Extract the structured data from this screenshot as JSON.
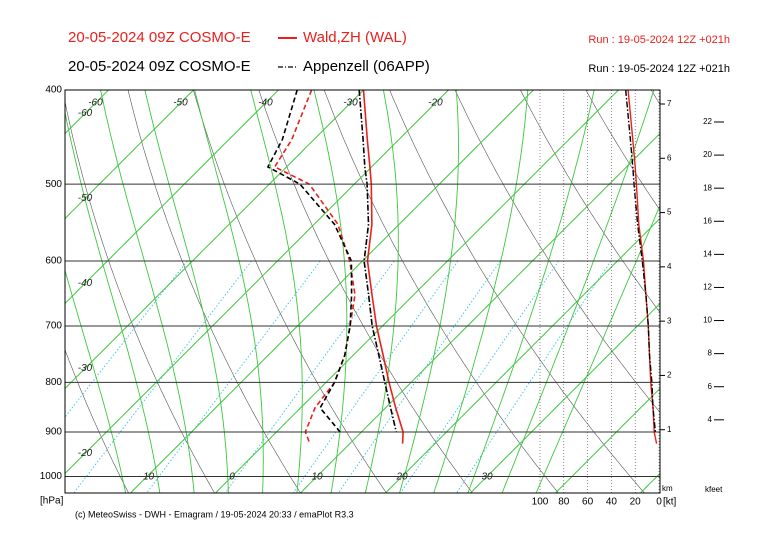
{
  "chart_data": {
    "type": "emagram",
    "stations": [
      {
        "label": "20-05-2024 09Z COSMO-E",
        "name": "Wald,ZH (WAL)",
        "run": "Run : 19-05-2024 12Z +021h",
        "color": "#e8211d",
        "dash": "solid",
        "temperature": [
          -30,
          -23.7,
          -20.2,
          -18,
          -13.2,
          -9.4,
          -4.9,
          -0.7,
          3.5,
          7.4,
          11.2,
          14.9,
          16.2
        ],
        "dewpoint": [
          -36.1,
          -32.6,
          -31.4,
          -25.3,
          -17.2,
          -11.5,
          -6.9,
          -3.8,
          -1,
          1,
          1.7,
          3.4,
          5.3
        ],
        "wind_speed": [
          26,
          22,
          20,
          19,
          17,
          13,
          11,
          9,
          8,
          7,
          5,
          4,
          2
        ]
      },
      {
        "label": "20-05-2024 09Z COSMO-E",
        "name": "Appenzell (06APP)",
        "run": "Run : 19-05-2024 12Z +021h",
        "color": "#000000",
        "dash": "dashdot",
        "temperature": [
          -30.5,
          -24.2,
          -20.8,
          -18.5,
          -13.6,
          -9.8,
          -5.3,
          -1.2,
          3,
          6.9,
          10.6,
          14.1,
          null
        ],
        "dewpoint": [
          -37.8,
          -33.7,
          -32.2,
          -26.4,
          -17.6,
          -11.3,
          -7.3,
          -3.8,
          -1,
          1,
          2.3,
          7.5,
          null
        ],
        "wind_speed": [
          28,
          24,
          22,
          21,
          18,
          14,
          11,
          9,
          8,
          6,
          5,
          3,
          null
        ]
      }
    ],
    "pressure_levels": [
      400,
      450,
      480,
      500,
      550,
      600,
      650,
      700,
      750,
      800,
      850,
      900,
      925
    ],
    "ylabel": "[hPa]",
    "ylim": [
      400,
      1040
    ],
    "log_y": true,
    "yticks": [
      400,
      500,
      600,
      700,
      800,
      900,
      1000
    ],
    "xticks": [
      -60,
      -50,
      -40,
      -30,
      -20,
      -10,
      0,
      10,
      20,
      30
    ],
    "km_label": "km",
    "km_lim": [
      0,
      7
    ],
    "km_ticks": [
      1,
      2,
      3,
      4,
      5,
      6,
      7
    ],
    "kfeet_label": "kfeet",
    "kfeet_lim": [
      0,
      22
    ],
    "kfeet_ticks": [
      4,
      6,
      8,
      10,
      12,
      14,
      16,
      18,
      20,
      22
    ],
    "wind_label": "[kt]",
    "wind_lim": [
      100,
      0
    ],
    "wind_ticks": [
      100,
      80,
      60,
      40,
      20,
      0
    ],
    "footer": "(c) MeteoSwiss - DWH - Emagram / 19-05-2024  20:33 / emaPlot R3.3"
  }
}
